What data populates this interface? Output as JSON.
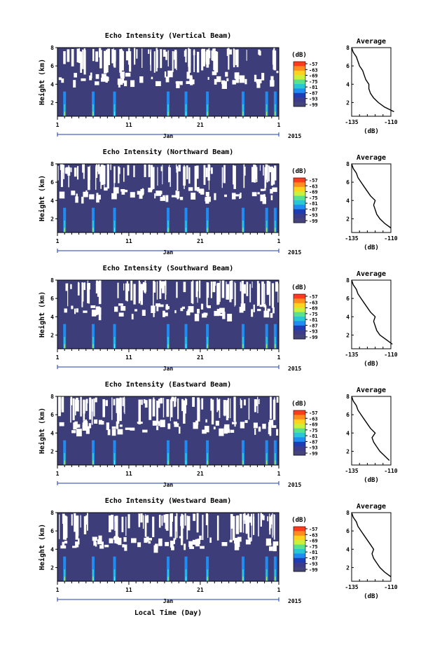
{
  "figure": {
    "xlabel": "Local Time (Day)",
    "month": "Jan",
    "year": "2015",
    "ylabel": "Height (km)",
    "colorbar_unit": "(dB)",
    "colorbar_ticks": [
      "-57",
      "-63",
      "-69",
      "-75",
      "-81",
      "-87",
      "-93",
      "-99"
    ],
    "colorbar_colors": [
      "#ff3b1e",
      "#ff8c1e",
      "#ffd21e",
      "#c8f03c",
      "#5ae18c",
      "#28c8d2",
      "#1e8cf0",
      "#1e3cb4",
      "#3c3c8c",
      "#44447a"
    ],
    "avg_title": "Average",
    "avg_xlabel": "(dB)",
    "avg_xticks": [
      "-135",
      "-110"
    ],
    "yticks": [
      "2",
      "4",
      "6",
      "8"
    ],
    "xticks": [
      "1",
      "11",
      "21",
      "1"
    ],
    "background_color": "#3d3d7a"
  },
  "chart_data": [
    {
      "type": "heatmap",
      "title": "Echo Intensity (Vertical Beam)",
      "xlabel": "Jan",
      "ylabel": "Height (km)",
      "ylim": [
        0.5,
        8
      ],
      "xlim": [
        1,
        32
      ],
      "clim": [
        -99,
        -57
      ],
      "color_scale_unit": "dB",
      "average_profile": {
        "title": "Average",
        "xlabel": "(dB)",
        "xlim": [
          -135,
          -110
        ],
        "height": [
          1.0,
          1.5,
          2.0,
          2.5,
          3.0,
          3.5,
          4.0,
          4.5,
          5.0,
          5.5,
          6.0,
          6.5,
          7.0,
          7.5,
          8.0
        ],
        "values": [
          -108,
          -114,
          -118,
          -121,
          -123,
          -124,
          -124,
          -126,
          -127,
          -128,
          -130,
          -131,
          -132,
          -134,
          -135
        ]
      }
    },
    {
      "type": "heatmap",
      "title": "Echo Intensity (Northward Beam)",
      "xlabel": "Jan",
      "ylabel": "Height (km)",
      "ylim": [
        0.5,
        8
      ],
      "xlim": [
        1,
        32
      ],
      "clim": [
        -99,
        -57
      ],
      "color_scale_unit": "dB",
      "average_profile": {
        "title": "Average",
        "xlabel": "(dB)",
        "xlim": [
          -135,
          -110
        ],
        "height": [
          1.0,
          1.5,
          2.0,
          2.5,
          3.0,
          3.5,
          4.0,
          4.5,
          5.0,
          5.5,
          6.0,
          6.5,
          7.0,
          7.5,
          8.0
        ],
        "values": [
          -110,
          -114,
          -117,
          -119,
          -120,
          -121,
          -120,
          -123,
          -125,
          -127,
          -129,
          -131,
          -132,
          -134,
          -135
        ]
      }
    },
    {
      "type": "heatmap",
      "title": "Echo Intensity (Southward Beam)",
      "xlabel": "Jan",
      "ylabel": "Height (km)",
      "ylim": [
        0.5,
        8
      ],
      "xlim": [
        1,
        32
      ],
      "clim": [
        -99,
        -57
      ],
      "color_scale_unit": "dB",
      "average_profile": {
        "title": "Average",
        "xlabel": "(dB)",
        "xlim": [
          -135,
          -110
        ],
        "height": [
          1.0,
          1.5,
          2.0,
          2.5,
          3.0,
          3.5,
          4.0,
          4.5,
          5.0,
          5.5,
          6.0,
          6.5,
          7.0,
          7.5,
          8.0
        ],
        "values": [
          -109,
          -113,
          -117,
          -119,
          -120,
          -121,
          -120,
          -123,
          -125,
          -127,
          -129,
          -131,
          -132,
          -134,
          -135
        ]
      }
    },
    {
      "type": "heatmap",
      "title": "Echo Intensity (Eastward Beam)",
      "xlabel": "Jan",
      "ylabel": "Height (km)",
      "ylim": [
        0.5,
        8
      ],
      "xlim": [
        1,
        32
      ],
      "clim": [
        -99,
        -57
      ],
      "color_scale_unit": "dB",
      "average_profile": {
        "title": "Average",
        "xlabel": "(dB)",
        "xlim": [
          -135,
          -110
        ],
        "height": [
          1.0,
          1.5,
          2.0,
          2.5,
          3.0,
          3.5,
          4.0,
          4.5,
          5.0,
          5.5,
          6.0,
          6.5,
          7.0,
          7.5,
          8.0
        ],
        "values": [
          -111,
          -114,
          -117,
          -119,
          -121,
          -122,
          -120,
          -123,
          -125,
          -127,
          -129,
          -131,
          -132,
          -134,
          -135
        ]
      }
    },
    {
      "type": "heatmap",
      "title": "Echo Intensity (Westward Beam)",
      "xlabel": "Jan",
      "ylabel": "Height (km)",
      "ylim": [
        0.5,
        8
      ],
      "xlim": [
        1,
        32
      ],
      "clim": [
        -99,
        -57
      ],
      "color_scale_unit": "dB",
      "average_profile": {
        "title": "Average",
        "xlabel": "(dB)",
        "xlim": [
          -135,
          -110
        ],
        "height": [
          1.0,
          1.5,
          2.0,
          2.5,
          3.0,
          3.5,
          4.0,
          4.5,
          5.0,
          5.5,
          6.0,
          6.5,
          7.0,
          7.5,
          8.0
        ],
        "values": [
          -110,
          -114,
          -117,
          -119,
          -121,
          -122,
          -121,
          -123,
          -125,
          -127,
          -129,
          -131,
          -132,
          -134,
          -135
        ]
      }
    }
  ]
}
